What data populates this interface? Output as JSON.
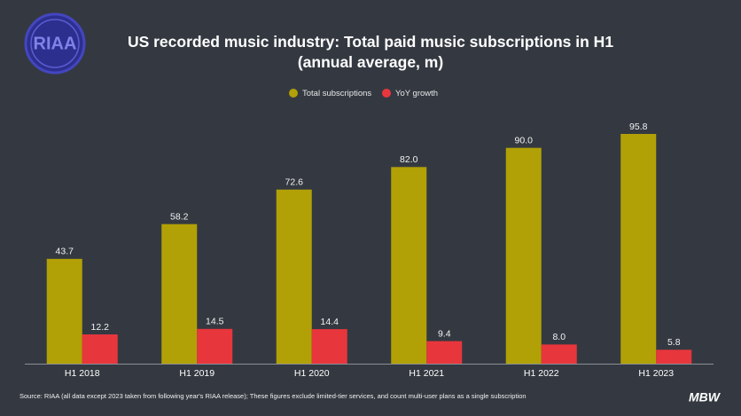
{
  "chart_data": {
    "type": "bar",
    "title": "US recorded music industry: Total paid music subscriptions in H1 (annual average, m)",
    "categories": [
      "H1 2018",
      "H1 2019",
      "H1 2020",
      "H1 2021",
      "H1 2022",
      "H1 2023"
    ],
    "series": [
      {
        "name": "Total subscriptions",
        "color": "#b2a106",
        "values": [
          43.7,
          58.2,
          72.6,
          82.0,
          90.0,
          95.8
        ],
        "value_labels": [
          "43.7",
          "58.2",
          "72.6",
          "82.0",
          "90.0",
          "95.8"
        ]
      },
      {
        "name": "YoY growth",
        "color": "#e8363d",
        "values": [
          12.2,
          14.5,
          14.4,
          9.4,
          8.0,
          5.8
        ],
        "value_labels": [
          "12.2",
          "14.5",
          "14.4",
          "9.4",
          "8.0",
          "5.8"
        ]
      }
    ],
    "legend": "top",
    "source": "Source: RIAA (all data except 2023 taken from following year's RIAA release); These figures exclude limited-tier services, and count multi-user plans as a single subscription",
    "logo": "RIAA",
    "brand": "MBW"
  }
}
